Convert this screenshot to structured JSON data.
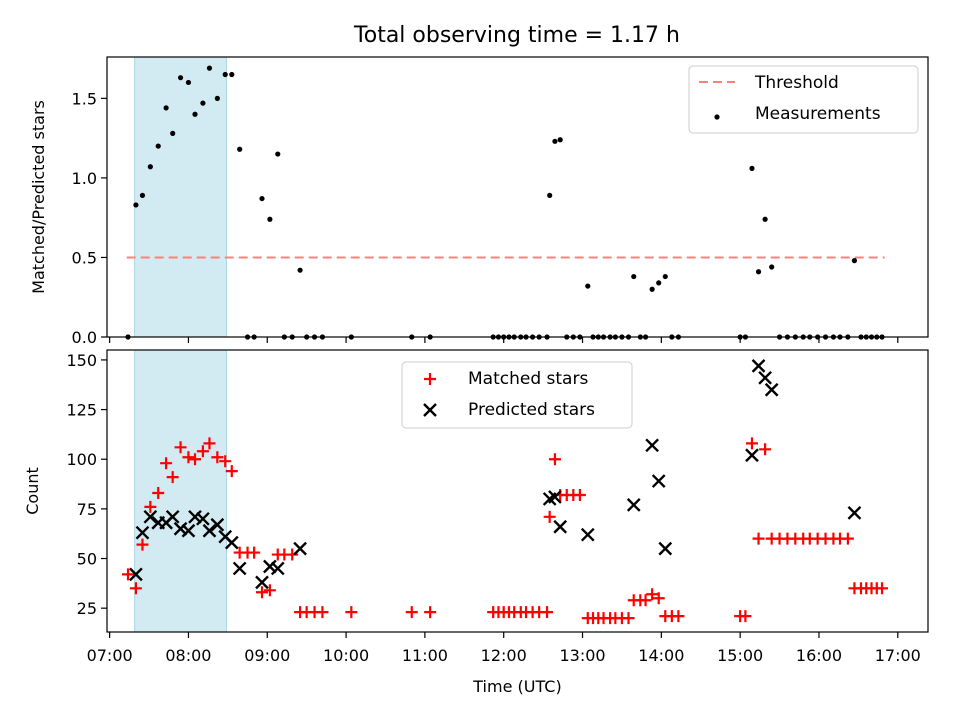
{
  "figure_title": "Total observing time = 1.17 h",
  "colors": {
    "threshold": "#ff7f7f",
    "measurement": "#000000",
    "matched": "#ff0000",
    "predicted": "#000000",
    "shade": "#add8e6"
  },
  "chart_data": [
    {
      "type": "scatter",
      "ylabel": "Matched/Predicted stars",
      "xlabel": "",
      "xlim": [
        "06:58",
        "17:23"
      ],
      "ylim": [
        0,
        1.76
      ],
      "grid": false,
      "legend_position": "top-right",
      "yticks": [
        0.0,
        0.5,
        1.0,
        1.5
      ],
      "ytick_labels": [
        "0.0",
        "0.5",
        "1.0",
        "1.5"
      ],
      "shaded_interval": [
        "07:19",
        "08:29"
      ],
      "threshold": {
        "name": "Threshold",
        "value": 0.5,
        "x_range": [
          "07:13",
          "16:50"
        ]
      },
      "series": [
        {
          "name": "Measurements",
          "points": [
            [
              "07:14",
              0.0
            ],
            [
              "07:20",
              0.83
            ],
            [
              "07:25",
              0.89
            ],
            [
              "07:31",
              1.07
            ],
            [
              "07:37",
              1.2
            ],
            [
              "07:43",
              1.44
            ],
            [
              "07:48",
              1.28
            ],
            [
              "07:54",
              1.63
            ],
            [
              "08:00",
              1.6
            ],
            [
              "08:05",
              1.4
            ],
            [
              "08:11",
              1.47
            ],
            [
              "08:16",
              1.69
            ],
            [
              "08:22",
              1.5
            ],
            [
              "08:28",
              1.65
            ],
            [
              "08:33",
              1.65
            ],
            [
              "08:39",
              1.18
            ],
            [
              "08:45",
              0.0
            ],
            [
              "08:50",
              0.0
            ],
            [
              "08:56",
              0.87
            ],
            [
              "09:02",
              0.74
            ],
            [
              "09:08",
              1.15
            ],
            [
              "09:13",
              0.0
            ],
            [
              "09:19",
              0.0
            ],
            [
              "09:25",
              0.42
            ],
            [
              "09:30",
              0.0
            ],
            [
              "09:36",
              0.0
            ],
            [
              "09:42",
              0.0
            ],
            [
              "10:04",
              0.0
            ],
            [
              "10:50",
              0.0
            ],
            [
              "11:04",
              0.0
            ],
            [
              "11:52",
              0.0
            ],
            [
              "11:56",
              0.0
            ],
            [
              "12:00",
              0.0
            ],
            [
              "12:04",
              0.0
            ],
            [
              "12:08",
              0.0
            ],
            [
              "12:13",
              0.0
            ],
            [
              "12:17",
              0.0
            ],
            [
              "12:22",
              0.0
            ],
            [
              "12:27",
              0.0
            ],
            [
              "12:33",
              0.0
            ],
            [
              "12:35",
              0.89
            ],
            [
              "12:39",
              1.23
            ],
            [
              "12:43",
              1.24
            ],
            [
              "12:48",
              0.0
            ],
            [
              "12:53",
              0.0
            ],
            [
              "12:58",
              0.0
            ],
            [
              "13:04",
              0.32
            ],
            [
              "13:08",
              0.0
            ],
            [
              "13:12",
              0.0
            ],
            [
              "13:16",
              0.0
            ],
            [
              "13:21",
              0.0
            ],
            [
              "13:25",
              0.0
            ],
            [
              "13:30",
              0.0
            ],
            [
              "13:35",
              0.0
            ],
            [
              "13:39",
              0.38
            ],
            [
              "13:44",
              0.0
            ],
            [
              "13:48",
              0.0
            ],
            [
              "13:53",
              0.3
            ],
            [
              "13:58",
              0.34
            ],
            [
              "14:03",
              0.38
            ],
            [
              "14:08",
              0.0
            ],
            [
              "14:13",
              0.0
            ],
            [
              "15:00",
              0.0
            ],
            [
              "15:04",
              0.0
            ],
            [
              "15:09",
              1.06
            ],
            [
              "15:14",
              0.41
            ],
            [
              "15:19",
              0.74
            ],
            [
              "15:24",
              0.44
            ],
            [
              "15:30",
              0.0
            ],
            [
              "15:36",
              0.0
            ],
            [
              "15:42",
              0.0
            ],
            [
              "15:48",
              0.0
            ],
            [
              "15:53",
              0.0
            ],
            [
              "15:59",
              0.0
            ],
            [
              "16:05",
              0.0
            ],
            [
              "16:11",
              0.0
            ],
            [
              "16:16",
              0.0
            ],
            [
              "16:22",
              0.0
            ],
            [
              "16:27",
              0.48
            ],
            [
              "16:32",
              0.0
            ],
            [
              "16:36",
              0.0
            ],
            [
              "16:40",
              0.0
            ],
            [
              "16:44",
              0.0
            ],
            [
              "16:48",
              0.0
            ]
          ]
        }
      ]
    },
    {
      "type": "scatter",
      "ylabel": "Count",
      "xlabel": "Time (UTC)",
      "xlim": [
        "06:58",
        "17:23"
      ],
      "ylim": [
        13,
        155
      ],
      "grid": false,
      "legend_position": "top-center",
      "yticks": [
        25,
        50,
        75,
        100,
        125,
        150
      ],
      "ytick_labels": [
        "25",
        "50",
        "75",
        "100",
        "125",
        "150"
      ],
      "xticks": [
        "07:00",
        "08:00",
        "09:00",
        "10:00",
        "11:00",
        "12:00",
        "13:00",
        "14:00",
        "15:00",
        "16:00",
        "17:00"
      ],
      "xtick_labels": [
        "07:00",
        "08:00",
        "09:00",
        "10:00",
        "11:00",
        "12:00",
        "13:00",
        "14:00",
        "15:00",
        "16:00",
        "17:00"
      ],
      "shaded_interval": [
        "07:19",
        "08:29"
      ],
      "series": [
        {
          "name": "Matched stars",
          "marker": "plus",
          "points": [
            [
              "07:14",
              42
            ],
            [
              "07:20",
              35
            ],
            [
              "07:25",
              57
            ],
            [
              "07:31",
              76
            ],
            [
              "07:37",
              83
            ],
            [
              "07:43",
              98
            ],
            [
              "07:48",
              91
            ],
            [
              "07:54",
              106
            ],
            [
              "08:00",
              101
            ],
            [
              "08:05",
              100
            ],
            [
              "08:11",
              104
            ],
            [
              "08:16",
              108
            ],
            [
              "08:22",
              101
            ],
            [
              "08:28",
              99
            ],
            [
              "08:33",
              94
            ],
            [
              "08:39",
              53
            ],
            [
              "08:45",
              53
            ],
            [
              "08:50",
              53
            ],
            [
              "08:56",
              33
            ],
            [
              "09:02",
              34
            ],
            [
              "09:08",
              52
            ],
            [
              "09:13",
              52
            ],
            [
              "09:19",
              52
            ],
            [
              "09:25",
              23
            ],
            [
              "09:30",
              23
            ],
            [
              "09:36",
              23
            ],
            [
              "09:42",
              23
            ],
            [
              "10:04",
              23
            ],
            [
              "10:50",
              23
            ],
            [
              "11:04",
              23
            ],
            [
              "11:52",
              23
            ],
            [
              "11:56",
              23
            ],
            [
              "12:00",
              23
            ],
            [
              "12:04",
              23
            ],
            [
              "12:08",
              23
            ],
            [
              "12:13",
              23
            ],
            [
              "12:17",
              23
            ],
            [
              "12:22",
              23
            ],
            [
              "12:27",
              23
            ],
            [
              "12:33",
              23
            ],
            [
              "12:35",
              71
            ],
            [
              "12:39",
              100
            ],
            [
              "12:43",
              82
            ],
            [
              "12:48",
              82
            ],
            [
              "12:53",
              82
            ],
            [
              "12:58",
              82
            ],
            [
              "13:04",
              20
            ],
            [
              "13:08",
              20
            ],
            [
              "13:12",
              20
            ],
            [
              "13:16",
              20
            ],
            [
              "13:21",
              20
            ],
            [
              "13:25",
              20
            ],
            [
              "13:30",
              20
            ],
            [
              "13:35",
              20
            ],
            [
              "13:39",
              29
            ],
            [
              "13:44",
              29
            ],
            [
              "13:48",
              29
            ],
            [
              "13:53",
              32
            ],
            [
              "13:58",
              30
            ],
            [
              "14:03",
              21
            ],
            [
              "14:08",
              21
            ],
            [
              "14:13",
              21
            ],
            [
              "15:00",
              21
            ],
            [
              "15:04",
              21
            ],
            [
              "15:09",
              108
            ],
            [
              "15:14",
              60
            ],
            [
              "15:19",
              105
            ],
            [
              "15:24",
              60
            ],
            [
              "15:30",
              60
            ],
            [
              "15:36",
              60
            ],
            [
              "15:42",
              60
            ],
            [
              "15:48",
              60
            ],
            [
              "15:53",
              60
            ],
            [
              "15:59",
              60
            ],
            [
              "16:05",
              60
            ],
            [
              "16:11",
              60
            ],
            [
              "16:16",
              60
            ],
            [
              "16:22",
              60
            ],
            [
              "16:27",
              35
            ],
            [
              "16:32",
              35
            ],
            [
              "16:36",
              35
            ],
            [
              "16:40",
              35
            ],
            [
              "16:44",
              35
            ],
            [
              "16:48",
              35
            ]
          ]
        },
        {
          "name": "Predicted stars",
          "marker": "x",
          "points": [
            [
              "07:20",
              42
            ],
            [
              "07:25",
              63
            ],
            [
              "07:31",
              71
            ],
            [
              "07:37",
              68
            ],
            [
              "07:43",
              68
            ],
            [
              "07:48",
              71
            ],
            [
              "07:54",
              65
            ],
            [
              "08:00",
              64
            ],
            [
              "08:05",
              71
            ],
            [
              "08:11",
              70
            ],
            [
              "08:16",
              64
            ],
            [
              "08:22",
              67
            ],
            [
              "08:28",
              61
            ],
            [
              "08:33",
              58
            ],
            [
              "08:39",
              45
            ],
            [
              "08:56",
              38
            ],
            [
              "09:02",
              46
            ],
            [
              "09:08",
              45
            ],
            [
              "09:25",
              55
            ],
            [
              "12:35",
              80
            ],
            [
              "12:39",
              81
            ],
            [
              "12:43",
              66
            ],
            [
              "13:04",
              62
            ],
            [
              "13:39",
              77
            ],
            [
              "13:53",
              107
            ],
            [
              "13:58",
              89
            ],
            [
              "14:03",
              55
            ],
            [
              "15:09",
              102
            ],
            [
              "15:14",
              147
            ],
            [
              "15:19",
              141
            ],
            [
              "15:24",
              135
            ],
            [
              "16:27",
              73
            ]
          ]
        }
      ]
    }
  ]
}
